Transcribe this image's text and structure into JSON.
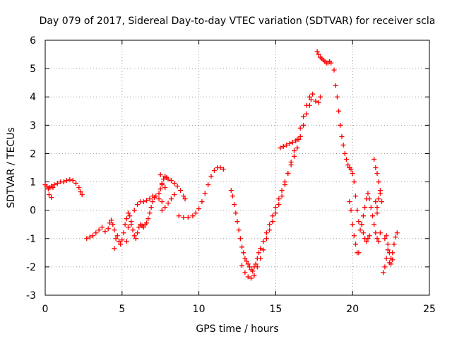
{
  "chart_data": {
    "type": "scatter",
    "title": "Day 079 of 2017, Sidereal Day-to-day VTEC variation (SDTVAR) for receiver scla",
    "xlabel": "GPS time / hours",
    "ylabel": "SDTVAR / TECUs",
    "xlim": [
      0,
      25
    ],
    "ylim": [
      -3,
      6
    ],
    "xticks": [
      0,
      5,
      10,
      15,
      20,
      25
    ],
    "xtick_labels": [
      "0",
      "5",
      "10",
      "15",
      "20",
      "25"
    ],
    "yticks": [
      -3,
      -2,
      -1,
      0,
      1,
      2,
      3,
      4,
      5,
      6
    ],
    "ytick_labels": [
      "-3",
      "-2",
      "-1",
      "0",
      "1",
      "2",
      "3",
      "4",
      "5",
      "6"
    ],
    "grid": true,
    "marker": "+",
    "series": [
      {
        "name": "SDTVAR",
        "color": "#ff0000",
        "points": [
          [
            0.0,
            0.9
          ],
          [
            0.1,
            0.85
          ],
          [
            0.2,
            0.75
          ],
          [
            0.3,
            0.8
          ],
          [
            0.4,
            0.85
          ],
          [
            0.5,
            0.8
          ],
          [
            0.6,
            0.9
          ],
          [
            0.8,
            0.95
          ],
          [
            1.0,
            1.0
          ],
          [
            1.2,
            1.0
          ],
          [
            1.4,
            1.05
          ],
          [
            1.6,
            1.08
          ],
          [
            1.8,
            1.05
          ],
          [
            2.0,
            0.95
          ],
          [
            2.2,
            0.8
          ],
          [
            2.3,
            0.65
          ],
          [
            2.4,
            0.55
          ],
          [
            0.25,
            0.55
          ],
          [
            0.4,
            0.45
          ],
          [
            2.7,
            -1.0
          ],
          [
            2.9,
            -0.95
          ],
          [
            3.1,
            -0.9
          ],
          [
            3.3,
            -0.8
          ],
          [
            3.5,
            -0.7
          ],
          [
            3.7,
            -0.6
          ],
          [
            3.9,
            -0.75
          ],
          [
            4.1,
            -0.65
          ],
          [
            4.2,
            -0.45
          ],
          [
            4.3,
            -0.35
          ],
          [
            4.4,
            -0.5
          ],
          [
            4.5,
            -0.7
          ],
          [
            4.6,
            -1.0
          ],
          [
            4.7,
            -0.9
          ],
          [
            4.8,
            -1.1
          ],
          [
            4.9,
            -1.2
          ],
          [
            5.0,
            -1.05
          ],
          [
            5.1,
            -0.8
          ],
          [
            5.2,
            -0.5
          ],
          [
            5.3,
            -0.3
          ],
          [
            5.4,
            -0.1
          ],
          [
            5.5,
            -0.2
          ],
          [
            5.6,
            -0.5
          ],
          [
            5.7,
            -0.7
          ],
          [
            5.8,
            -0.9
          ],
          [
            5.9,
            -1.0
          ],
          [
            6.0,
            -0.8
          ],
          [
            6.1,
            -0.6
          ],
          [
            6.2,
            -0.5
          ],
          [
            6.3,
            -0.55
          ],
          [
            6.4,
            -0.6
          ],
          [
            6.5,
            -0.5
          ],
          [
            6.6,
            -0.45
          ],
          [
            6.7,
            -0.3
          ],
          [
            6.8,
            -0.1
          ],
          [
            6.9,
            0.1
          ],
          [
            7.0,
            0.3
          ],
          [
            7.1,
            0.45
          ],
          [
            4.5,
            -1.35
          ],
          [
            5.3,
            -1.1
          ],
          [
            5.4,
            -0.6
          ],
          [
            5.6,
            -0.4
          ],
          [
            5.8,
            0.0
          ],
          [
            6.0,
            0.2
          ],
          [
            6.2,
            0.3
          ],
          [
            6.4,
            0.3
          ],
          [
            6.6,
            0.35
          ],
          [
            6.8,
            0.4
          ],
          [
            7.0,
            0.5
          ],
          [
            7.2,
            0.5
          ],
          [
            7.4,
            0.4
          ],
          [
            7.6,
            0.3
          ],
          [
            7.4,
            0.6
          ],
          [
            7.5,
            0.75
          ],
          [
            7.6,
            0.9
          ],
          [
            7.7,
            1.1
          ],
          [
            7.8,
            1.2
          ],
          [
            7.9,
            1.15
          ],
          [
            8.0,
            1.1
          ],
          [
            8.2,
            1.05
          ],
          [
            8.4,
            0.95
          ],
          [
            8.6,
            0.85
          ],
          [
            8.8,
            0.7
          ],
          [
            9.0,
            0.5
          ],
          [
            9.1,
            0.4
          ],
          [
            7.5,
            1.25
          ],
          [
            7.6,
            0.95
          ],
          [
            7.8,
            0.8
          ],
          [
            7.6,
            0.0
          ],
          [
            7.8,
            0.1
          ],
          [
            8.0,
            0.25
          ],
          [
            8.2,
            0.4
          ],
          [
            8.4,
            0.55
          ],
          [
            8.7,
            -0.2
          ],
          [
            9.0,
            -0.25
          ],
          [
            9.3,
            -0.25
          ],
          [
            9.6,
            -0.2
          ],
          [
            9.8,
            -0.1
          ],
          [
            10.0,
            0.05
          ],
          [
            10.2,
            0.3
          ],
          [
            10.4,
            0.6
          ],
          [
            10.6,
            0.9
          ],
          [
            10.8,
            1.2
          ],
          [
            11.0,
            1.4
          ],
          [
            11.2,
            1.5
          ],
          [
            11.4,
            1.5
          ],
          [
            11.6,
            1.45
          ],
          [
            12.1,
            0.7
          ],
          [
            12.2,
            0.5
          ],
          [
            12.3,
            0.2
          ],
          [
            12.4,
            -0.1
          ],
          [
            12.5,
            -0.4
          ],
          [
            12.6,
            -0.7
          ],
          [
            12.7,
            -1.0
          ],
          [
            12.8,
            -1.3
          ],
          [
            12.9,
            -1.5
          ],
          [
            13.0,
            -1.7
          ],
          [
            13.1,
            -1.8
          ],
          [
            13.2,
            -1.9
          ],
          [
            13.3,
            -2.0
          ],
          [
            13.4,
            -2.1
          ],
          [
            13.5,
            -2.15
          ],
          [
            13.6,
            -2.0
          ],
          [
            13.7,
            -1.9
          ],
          [
            13.8,
            -1.7
          ],
          [
            13.9,
            -1.5
          ],
          [
            14.0,
            -1.35
          ],
          [
            14.2,
            -1.1
          ],
          [
            14.4,
            -0.8
          ],
          [
            14.6,
            -0.5
          ],
          [
            14.8,
            -0.2
          ],
          [
            15.0,
            0.1
          ],
          [
            15.2,
            0.4
          ],
          [
            15.4,
            0.7
          ],
          [
            15.6,
            1.0
          ],
          [
            15.8,
            1.3
          ],
          [
            16.0,
            1.6
          ],
          [
            16.2,
            1.9
          ],
          [
            16.4,
            2.2
          ],
          [
            16.6,
            2.6
          ],
          [
            16.8,
            3.0
          ],
          [
            17.0,
            3.4
          ],
          [
            17.2,
            3.7
          ],
          [
            17.3,
            3.9
          ],
          [
            12.8,
            -1.95
          ],
          [
            13.0,
            -2.2
          ],
          [
            13.2,
            -2.35
          ],
          [
            13.4,
            -2.4
          ],
          [
            13.6,
            -2.3
          ],
          [
            13.8,
            -2.0
          ],
          [
            14.0,
            -1.7
          ],
          [
            14.2,
            -1.4
          ],
          [
            14.4,
            -1.0
          ],
          [
            14.6,
            -0.7
          ],
          [
            14.8,
            -0.4
          ],
          [
            15.0,
            -0.1
          ],
          [
            15.2,
            0.2
          ],
          [
            15.4,
            0.5
          ],
          [
            15.6,
            0.9
          ],
          [
            15.8,
            1.3
          ],
          [
            16.0,
            1.7
          ],
          [
            16.2,
            2.1
          ],
          [
            16.4,
            2.5
          ],
          [
            16.6,
            2.9
          ],
          [
            16.8,
            3.3
          ],
          [
            17.0,
            3.7
          ],
          [
            17.2,
            4.0
          ],
          [
            17.4,
            4.1
          ],
          [
            17.6,
            3.85
          ],
          [
            17.8,
            3.8
          ],
          [
            17.9,
            4.0
          ],
          [
            15.3,
            2.2
          ],
          [
            15.5,
            2.25
          ],
          [
            15.7,
            2.3
          ],
          [
            15.9,
            2.35
          ],
          [
            16.1,
            2.4
          ],
          [
            16.3,
            2.45
          ],
          [
            16.5,
            2.5
          ],
          [
            17.7,
            5.6
          ],
          [
            17.8,
            5.5
          ],
          [
            17.9,
            5.4
          ],
          [
            18.0,
            5.35
          ],
          [
            18.1,
            5.3
          ],
          [
            18.2,
            5.25
          ],
          [
            18.3,
            5.2
          ],
          [
            18.4,
            5.2
          ],
          [
            18.5,
            5.25
          ],
          [
            18.6,
            5.2
          ],
          [
            18.8,
            4.95
          ],
          [
            18.9,
            4.4
          ],
          [
            19.0,
            4.0
          ],
          [
            19.1,
            3.5
          ],
          [
            19.2,
            3.0
          ],
          [
            19.3,
            2.6
          ],
          [
            19.4,
            2.3
          ],
          [
            19.5,
            2.0
          ],
          [
            19.6,
            1.8
          ],
          [
            19.7,
            1.6
          ],
          [
            19.8,
            1.5
          ],
          [
            19.9,
            1.45
          ],
          [
            20.0,
            1.3
          ],
          [
            20.1,
            1.0
          ],
          [
            20.2,
            0.5
          ],
          [
            20.3,
            0.0
          ],
          [
            20.4,
            -0.4
          ],
          [
            20.5,
            -0.7
          ],
          [
            20.6,
            -0.5
          ],
          [
            20.7,
            -0.2
          ],
          [
            20.8,
            0.1
          ],
          [
            20.9,
            0.4
          ],
          [
            21.0,
            0.6
          ],
          [
            21.1,
            0.4
          ],
          [
            21.2,
            0.1
          ],
          [
            21.3,
            -0.2
          ],
          [
            21.4,
            -0.5
          ],
          [
            21.5,
            -0.8
          ],
          [
            21.6,
            -1.0
          ],
          [
            21.7,
            -1.1
          ],
          [
            21.8,
            -0.8
          ],
          [
            19.8,
            0.3
          ],
          [
            19.9,
            0.0
          ],
          [
            20.0,
            -0.5
          ],
          [
            20.1,
            -0.9
          ],
          [
            20.2,
            -1.2
          ],
          [
            20.3,
            -1.5
          ],
          [
            20.4,
            -1.5
          ],
          [
            20.6,
            -0.5
          ],
          [
            20.7,
            -0.8
          ],
          [
            20.8,
            -1.0
          ],
          [
            20.9,
            -1.1
          ],
          [
            21.0,
            -1.0
          ],
          [
            21.1,
            -0.9
          ],
          [
            21.4,
            1.8
          ],
          [
            21.5,
            1.5
          ],
          [
            21.6,
            1.3
          ],
          [
            21.7,
            1.0
          ],
          [
            21.8,
            0.7
          ],
          [
            21.9,
            0.3
          ],
          [
            21.6,
            0.1
          ],
          [
            21.7,
            0.4
          ],
          [
            21.8,
            0.6
          ],
          [
            21.5,
            0.3
          ],
          [
            21.6,
            -0.1
          ],
          [
            22.0,
            -2.2
          ],
          [
            22.1,
            -2.0
          ],
          [
            22.2,
            -1.7
          ],
          [
            22.3,
            -1.4
          ],
          [
            22.4,
            -1.5
          ],
          [
            22.5,
            -1.7
          ],
          [
            22.6,
            -1.5
          ],
          [
            22.7,
            -1.2
          ],
          [
            22.8,
            -0.95
          ],
          [
            22.9,
            -0.8
          ],
          [
            22.1,
            -1.0
          ],
          [
            22.2,
            -0.9
          ],
          [
            22.3,
            -1.2
          ],
          [
            22.5,
            -1.9
          ],
          [
            22.6,
            -1.75
          ],
          [
            22.4,
            -1.85
          ]
        ]
      }
    ]
  }
}
